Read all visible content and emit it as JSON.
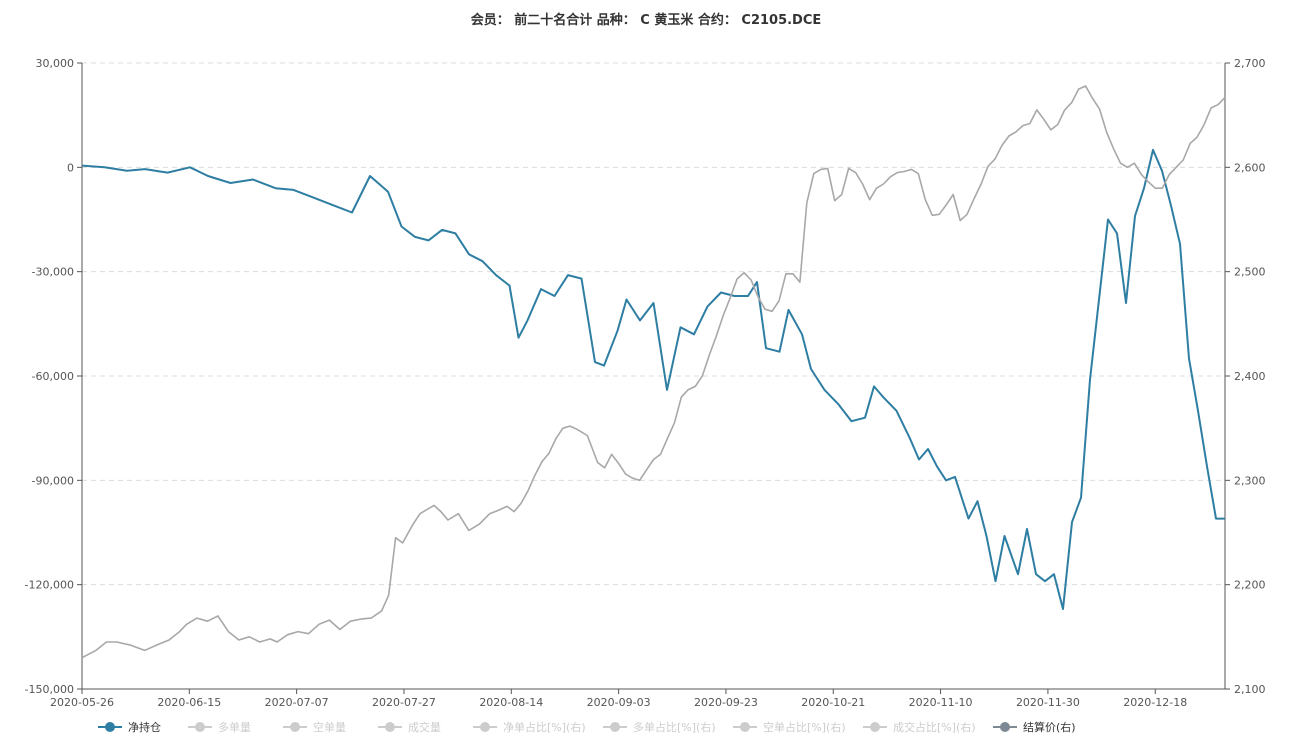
{
  "chart_data": {
    "type": "line",
    "title": "会员： 前二十名合计 品种： C 黄玉米 合约： C2105.DCE",
    "x_tick_labels": [
      "2020-05-26",
      "2020-06-15",
      "2020-07-07",
      "2020-07-27",
      "2020-08-14",
      "2020-09-03",
      "2020-09-23",
      "2020-10-21",
      "2020-11-10",
      "2020-11-30",
      "2020-12-18"
    ],
    "y_left": {
      "ylim": [
        -150000,
        30000
      ],
      "ticks": [
        30000,
        0,
        -30000,
        -60000,
        -90000,
        -120000,
        -150000
      ],
      "tick_labels": [
        "30,000",
        "0",
        "-30,000",
        "-60,000",
        "-90,000",
        "-120,000",
        "-150,000"
      ]
    },
    "y_right": {
      "ylim": [
        2100,
        2700
      ],
      "ticks": [
        2700,
        2600,
        2500,
        2400,
        2300,
        2200,
        2100
      ],
      "tick_labels": [
        "2,700",
        "2,600",
        "2,500",
        "2,400",
        "2,300",
        "2,200",
        "2,100"
      ]
    },
    "grid": true,
    "legend_position": "bottom",
    "legend": [
      {
        "name": "净持仓",
        "active": true
      },
      {
        "name": "多单量",
        "active": false
      },
      {
        "name": "空单量",
        "active": false
      },
      {
        "name": "成交量",
        "active": false
      },
      {
        "name": "净单占比[%](右)",
        "active": false
      },
      {
        "name": "多单占比[%](右)",
        "active": false
      },
      {
        "name": "空单占比[%](右)",
        "active": false
      },
      {
        "name": "成交占比[%](右)",
        "active": false
      },
      {
        "name": "结算价(右)",
        "active": true
      }
    ],
    "series": [
      {
        "name": "净持仓",
        "axis": "left",
        "color": "#2e7ea3",
        "keypoints": [
          [
            0,
            500
          ],
          [
            5,
            0
          ],
          [
            10,
            -1000
          ],
          [
            14,
            -500
          ],
          [
            19,
            -1500
          ],
          [
            24,
            0
          ],
          [
            28,
            -2500
          ],
          [
            33,
            -4500
          ],
          [
            38,
            -3500
          ],
          [
            43,
            -6000
          ],
          [
            47,
            -6500
          ],
          [
            52,
            -9000
          ],
          [
            56,
            -11000
          ],
          [
            60,
            -13000
          ],
          [
            64,
            -2500
          ],
          [
            68,
            -7000
          ],
          [
            71,
            -17000
          ],
          [
            74,
            -20000
          ],
          [
            77,
            -21000
          ],
          [
            80,
            -18000
          ],
          [
            83,
            -19000
          ],
          [
            86,
            -25000
          ],
          [
            89,
            -27000
          ],
          [
            92,
            -31000
          ],
          [
            95,
            -34000
          ],
          [
            97,
            -49000
          ],
          [
            99,
            -44000
          ],
          [
            102,
            -35000
          ],
          [
            105,
            -37000
          ],
          [
            108,
            -31000
          ],
          [
            111,
            -32000
          ],
          [
            114,
            -56000
          ],
          [
            116,
            -57000
          ],
          [
            119,
            -47000
          ],
          [
            121,
            -38000
          ],
          [
            124,
            -44000
          ],
          [
            127,
            -39000
          ],
          [
            130,
            -64000
          ],
          [
            133,
            -46000
          ],
          [
            136,
            -48000
          ],
          [
            139,
            -40000
          ],
          [
            142,
            -36000
          ],
          [
            145,
            -37000
          ],
          [
            148,
            -37000
          ],
          [
            150,
            -33000
          ],
          [
            152,
            -52000
          ],
          [
            155,
            -53000
          ],
          [
            157,
            -41000
          ],
          [
            160,
            -48000
          ],
          [
            162,
            -58000
          ],
          [
            165,
            -64000
          ],
          [
            168,
            -68000
          ],
          [
            171,
            -73000
          ],
          [
            174,
            -72000
          ],
          [
            176,
            -63000
          ],
          [
            178,
            -66000
          ],
          [
            181,
            -70000
          ],
          [
            184,
            -78000
          ],
          [
            186,
            -84000
          ],
          [
            188,
            -81000
          ],
          [
            190,
            -86000
          ],
          [
            192,
            -90000
          ],
          [
            194,
            -89000
          ],
          [
            197,
            -101000
          ],
          [
            199,
            -96000
          ],
          [
            201,
            -106000
          ],
          [
            203,
            -119000
          ],
          [
            205,
            -106000
          ],
          [
            208,
            -117000
          ],
          [
            210,
            -104000
          ],
          [
            212,
            -117000
          ],
          [
            214,
            -119000
          ],
          [
            216,
            -117000
          ],
          [
            218,
            -127000
          ],
          [
            220,
            -102000
          ],
          [
            222,
            -95000
          ],
          [
            224,
            -61000
          ],
          [
            226,
            -38000
          ],
          [
            228,
            -15000
          ],
          [
            230,
            -19000
          ],
          [
            232,
            -39000
          ],
          [
            234,
            -14000
          ],
          [
            236,
            -6000
          ],
          [
            238,
            5000
          ],
          [
            240,
            -1000
          ],
          [
            242,
            -11000
          ],
          [
            244,
            -22000
          ],
          [
            246,
            -55000
          ],
          [
            248,
            -70000
          ],
          [
            250,
            -86000
          ],
          [
            252,
            -101000
          ],
          [
            254,
            -101000
          ]
        ]
      },
      {
        "name": "结算价(右)",
        "axis": "right",
        "color": "#a8a8a8",
        "keypoints": [
          [
            0,
            2130
          ],
          [
            4,
            2137
          ],
          [
            7,
            2145
          ],
          [
            10,
            2145
          ],
          [
            14,
            2142
          ],
          [
            18,
            2137
          ],
          [
            20,
            2140
          ],
          [
            22,
            2143
          ],
          [
            25,
            2147
          ],
          [
            28,
            2155
          ],
          [
            30,
            2162
          ],
          [
            33,
            2168
          ],
          [
            36,
            2165
          ],
          [
            39,
            2170
          ],
          [
            42,
            2155
          ],
          [
            45,
            2147
          ],
          [
            48,
            2150
          ],
          [
            51,
            2145
          ],
          [
            54,
            2148
          ],
          [
            56,
            2145
          ],
          [
            59,
            2152
          ],
          [
            62,
            2155
          ],
          [
            65,
            2153
          ],
          [
            68,
            2162
          ],
          [
            71,
            2166
          ],
          [
            74,
            2157
          ],
          [
            77,
            2165
          ],
          [
            80,
            2167
          ],
          [
            83,
            2168
          ],
          [
            86,
            2175
          ],
          [
            88,
            2190
          ],
          [
            90,
            2245
          ],
          [
            92,
            2240
          ],
          [
            95,
            2258
          ],
          [
            97,
            2268
          ],
          [
            99,
            2272
          ],
          [
            101,
            2276
          ],
          [
            103,
            2270
          ],
          [
            105,
            2262
          ],
          [
            108,
            2268
          ],
          [
            111,
            2252
          ],
          [
            114,
            2258
          ],
          [
            117,
            2268
          ],
          [
            120,
            2272
          ],
          [
            122,
            2275
          ],
          [
            124,
            2270
          ],
          [
            126,
            2278
          ],
          [
            128,
            2290
          ],
          [
            130,
            2305
          ],
          [
            132,
            2318
          ],
          [
            134,
            2326
          ],
          [
            136,
            2340
          ],
          [
            138,
            2350
          ],
          [
            140,
            2352
          ],
          [
            142,
            2349
          ],
          [
            145,
            2343
          ],
          [
            148,
            2317
          ],
          [
            150,
            2312
          ],
          [
            152,
            2325
          ],
          [
            154,
            2316
          ],
          [
            156,
            2306
          ],
          [
            158,
            2302
          ],
          [
            160,
            2300
          ],
          [
            162,
            2310
          ],
          [
            164,
            2320
          ],
          [
            166,
            2325
          ],
          [
            168,
            2340
          ],
          [
            170,
            2355
          ],
          [
            172,
            2380
          ],
          [
            174,
            2387
          ],
          [
            176,
            2390
          ],
          [
            178,
            2400
          ],
          [
            180,
            2420
          ],
          [
            182,
            2438
          ],
          [
            184,
            2458
          ],
          [
            186,
            2475
          ],
          [
            188,
            2493
          ],
          [
            190,
            2499
          ],
          [
            192,
            2492
          ],
          [
            194,
            2476
          ],
          [
            196,
            2464
          ],
          [
            198,
            2462
          ],
          [
            200,
            2472
          ],
          [
            202,
            2498
          ],
          [
            204,
            2498
          ],
          [
            206,
            2490
          ],
          [
            208,
            2566
          ],
          [
            210,
            2594
          ],
          [
            212,
            2598
          ],
          [
            214,
            2599
          ],
          [
            216,
            2568
          ],
          [
            218,
            2574
          ],
          [
            220,
            2599
          ],
          [
            222,
            2595
          ],
          [
            224,
            2584
          ],
          [
            226,
            2569
          ],
          [
            228,
            2580
          ],
          [
            230,
            2584
          ],
          [
            232,
            2591
          ],
          [
            234,
            2595
          ],
          [
            236,
            2596
          ],
          [
            238,
            2598
          ],
          [
            240,
            2594
          ],
          [
            242,
            2569
          ],
          [
            244,
            2554
          ],
          [
            246,
            2555
          ],
          [
            248,
            2564
          ],
          [
            250,
            2574
          ],
          [
            252,
            2549
          ],
          [
            254,
            2555
          ],
          [
            256,
            2570
          ],
          [
            258,
            2584
          ],
          [
            260,
            2601
          ],
          [
            262,
            2608
          ],
          [
            264,
            2621
          ],
          [
            266,
            2630
          ],
          [
            268,
            2634
          ],
          [
            270,
            2640
          ],
          [
            272,
            2642
          ],
          [
            274,
            2655
          ],
          [
            276,
            2646
          ],
          [
            278,
            2636
          ],
          [
            280,
            2641
          ],
          [
            282,
            2655
          ],
          [
            284,
            2662
          ],
          [
            286,
            2675
          ],
          [
            288,
            2678
          ],
          [
            290,
            2666
          ],
          [
            292,
            2656
          ],
          [
            294,
            2634
          ],
          [
            296,
            2618
          ],
          [
            298,
            2604
          ],
          [
            300,
            2600
          ],
          [
            302,
            2604
          ],
          [
            304,
            2593
          ],
          [
            306,
            2586
          ],
          [
            308,
            2580
          ],
          [
            310,
            2580
          ],
          [
            312,
            2593
          ],
          [
            314,
            2600
          ],
          [
            316,
            2607
          ],
          [
            318,
            2623
          ],
          [
            320,
            2629
          ],
          [
            322,
            2641
          ],
          [
            324,
            2657
          ],
          [
            326,
            2660
          ],
          [
            328,
            2667
          ]
        ]
      }
    ]
  }
}
